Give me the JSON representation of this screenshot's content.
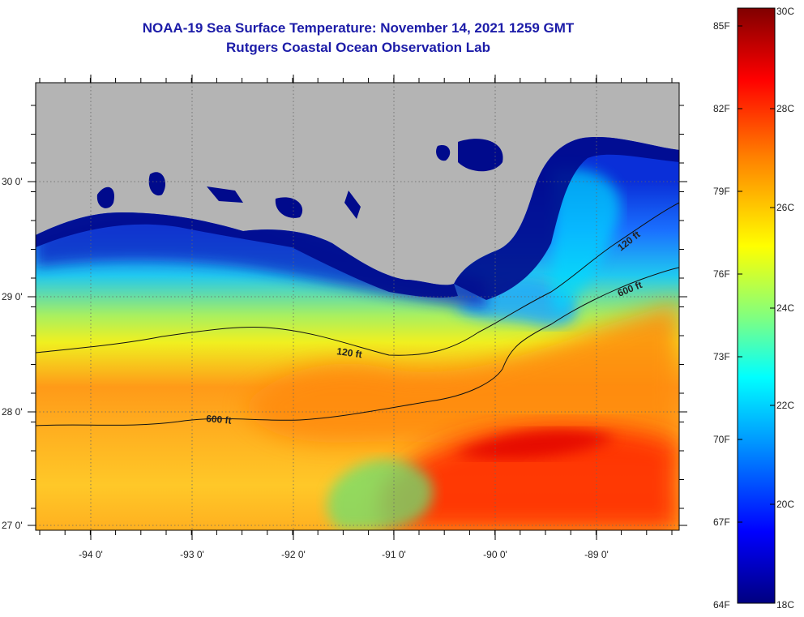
{
  "title": {
    "line1": "NOAA-19 Sea Surface Temperature:  November 14, 2021 1259 GMT",
    "line2": "Rutgers Coastal Ocean Observation Lab"
  },
  "map": {
    "lon_ticks": [
      {
        "label": "-94 0'"
      },
      {
        "label": "-93 0'"
      },
      {
        "label": "-92 0'"
      },
      {
        "label": "-91 0'"
      },
      {
        "label": "-90 0'"
      },
      {
        "label": "-89 0'"
      }
    ],
    "lat_ticks": [
      {
        "label": "30 0'"
      },
      {
        "label": "29 0'"
      },
      {
        "label": "28 0'"
      },
      {
        "label": "27 0'"
      }
    ],
    "contour_labels": [
      {
        "label": "120 ft"
      },
      {
        "label": "600 ft"
      },
      {
        "label": "120 ft"
      },
      {
        "label": "600 ft"
      }
    ],
    "land_color": "#b4b4b4"
  },
  "colorbar": {
    "fahrenheit_labels": [
      "85F",
      "82F",
      "79F",
      "76F",
      "73F",
      "70F",
      "67F",
      "64F"
    ],
    "celsius_labels": [
      "30C",
      "28C",
      "26C",
      "24C",
      "22C",
      "20C",
      "18C"
    ],
    "colors": [
      "#000080",
      "#0000ff",
      "#00a0ff",
      "#00ffff",
      "#80ff80",
      "#ffff00",
      "#ff8000",
      "#ff0000",
      "#800000"
    ]
  }
}
